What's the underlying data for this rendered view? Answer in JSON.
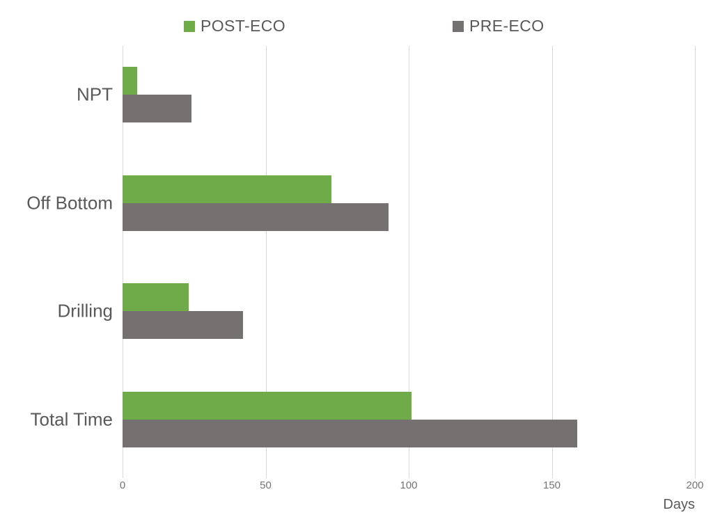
{
  "chart_data": {
    "type": "bar",
    "orientation": "horizontal",
    "title": "",
    "categories": [
      "NPT",
      "Off Bottom",
      "Drilling",
      "Total Time"
    ],
    "series": [
      {
        "name": "POST-ECO",
        "color": "#6FAC49",
        "values": [
          5,
          73,
          23,
          101
        ]
      },
      {
        "name": "PRE-ECO",
        "color": "#767171",
        "values": [
          24,
          93,
          42,
          159
        ]
      }
    ],
    "xlabel": "Days",
    "ylabel": "",
    "xlim": [
      0,
      200
    ],
    "xticks": [
      0,
      50,
      100,
      150,
      200
    ],
    "grid": "vertical-gridlines-on",
    "legend_position": "top"
  },
  "palette": {
    "background": "#FFFFFF",
    "gridline": "#D9D9D9",
    "category_label_text": "#595959",
    "tick_label_text": "#737373",
    "legend_text": "#595959"
  }
}
